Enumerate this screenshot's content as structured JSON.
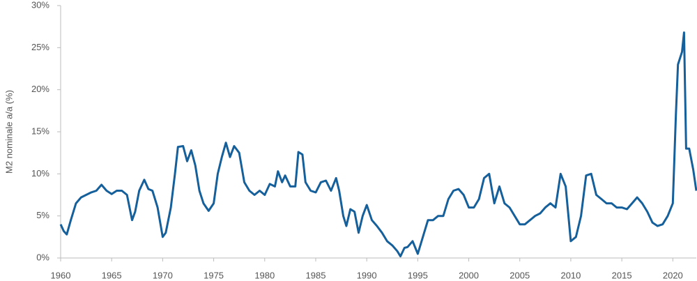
{
  "chart_data": {
    "type": "line",
    "y_label": "M2 nominale a/a (%)",
    "x": [
      1960.0,
      1960.3,
      1960.6,
      1961,
      1961.5,
      1962,
      1962.5,
      1963,
      1963.5,
      1964,
      1964.5,
      1965,
      1965.5,
      1966,
      1966.5,
      1967,
      1967.3,
      1967.7,
      1968.2,
      1968.6,
      1969,
      1969.5,
      1970.0,
      1970.3,
      1970.8,
      1971.2,
      1971.5,
      1972,
      1972.4,
      1972.8,
      1973.2,
      1973.6,
      1974,
      1974.5,
      1975,
      1975.4,
      1975.8,
      1976.2,
      1976.6,
      1977,
      1977.5,
      1978,
      1978.5,
      1979,
      1979.5,
      1980,
      1980.5,
      1981,
      1981.3,
      1981.7,
      1982,
      1982.5,
      1983,
      1983.3,
      1983.7,
      1984,
      1984.5,
      1985,
      1985.5,
      1986,
      1986.5,
      1987,
      1987.3,
      1987.7,
      1988,
      1988.4,
      1988.8,
      1989.2,
      1989.6,
      1990,
      1990.5,
      1991,
      1991.5,
      1992,
      1992.5,
      1993,
      1993.3,
      1993.7,
      1994,
      1994.5,
      1995,
      1995.5,
      1996,
      1996.5,
      1997,
      1997.5,
      1998,
      1998.5,
      1999,
      1999.5,
      2000,
      2000.5,
      2001,
      2001.5,
      2002,
      2002.5,
      2003,
      2003.5,
      2004,
      2004.5,
      2005,
      2005.5,
      2006,
      2006.5,
      2007,
      2007.5,
      2008,
      2008.5,
      2009,
      2009.5,
      2010,
      2010.5,
      2011,
      2011.5,
      2012,
      2012.5,
      2013,
      2013.5,
      2014,
      2014.5,
      2015,
      2015.5,
      2016,
      2016.5,
      2017,
      2017.5,
      2018,
      2018.5,
      2019,
      2019.5,
      2020,
      2020.3,
      2020.5,
      2020.9,
      2021.1,
      2021.3,
      2021.6,
      2022,
      2022.3
    ],
    "series": [
      {
        "name": "M2",
        "color": "#155f9b",
        "values": [
          4.0,
          3.2,
          2.8,
          4.5,
          6.5,
          7.2,
          7.5,
          7.8,
          8.0,
          8.7,
          8.0,
          7.6,
          8.0,
          8.0,
          7.5,
          4.5,
          5.5,
          8.0,
          9.3,
          8.2,
          8.0,
          6.0,
          2.5,
          3.0,
          6.0,
          10.0,
          13.2,
          13.3,
          11.5,
          12.8,
          11.0,
          8.0,
          6.5,
          5.6,
          6.5,
          10.0,
          12.0,
          13.7,
          12.0,
          13.3,
          12.5,
          9.0,
          8.0,
          7.5,
          8.0,
          7.5,
          8.8,
          8.5,
          10.3,
          9.0,
          9.8,
          8.5,
          8.5,
          12.6,
          12.3,
          9.0,
          8.0,
          7.8,
          9.0,
          9.2,
          8.0,
          9.5,
          8.0,
          5.0,
          3.8,
          5.8,
          5.5,
          3.0,
          5.0,
          6.3,
          4.5,
          3.8,
          3.0,
          2.0,
          1.5,
          0.8,
          0.2,
          1.2,
          1.3,
          2.0,
          0.5,
          2.5,
          4.5,
          4.5,
          5.0,
          5.0,
          7.0,
          8.0,
          8.2,
          7.5,
          6.0,
          6.0,
          7.0,
          9.5,
          10.0,
          6.5,
          8.5,
          6.5,
          6.0,
          5.0,
          4.0,
          4.0,
          4.5,
          5.0,
          5.3,
          6.0,
          6.5,
          6.0,
          10.0,
          8.5,
          2.0,
          2.5,
          5.0,
          9.8,
          10.0,
          7.5,
          7.0,
          6.5,
          6.5,
          6.0,
          6.0,
          5.8,
          6.5,
          7.2,
          6.5,
          5.5,
          4.2,
          3.8,
          4.0,
          5.0,
          6.5,
          17.0,
          23.0,
          24.5,
          26.8,
          13.0,
          13.0,
          10.5,
          8.0
        ]
      }
    ],
    "xlim": [
      1960,
      2022.3
    ],
    "xticks": [
      1960,
      1965,
      1970,
      1975,
      1980,
      1985,
      1990,
      1995,
      2000,
      2005,
      2010,
      2015,
      2020
    ],
    "ylim": [
      0,
      30
    ],
    "yticks": [
      {
        "value": 0,
        "label": "0%"
      },
      {
        "value": 5,
        "label": "5%"
      },
      {
        "value": 10,
        "label": "10%"
      },
      {
        "value": 15,
        "label": "15%"
      },
      {
        "value": 20,
        "label": "20%"
      },
      {
        "value": 25,
        "label": "25%"
      },
      {
        "value": 30,
        "label": "30%"
      }
    ]
  }
}
